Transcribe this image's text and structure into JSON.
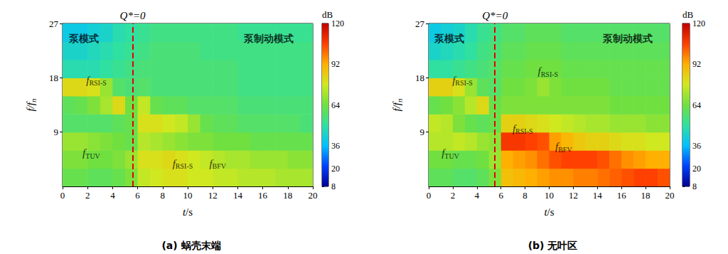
{
  "chart_data": [
    {
      "type": "heatmap",
      "title": "(a) 蜗壳末端",
      "xlabel": "t/s",
      "ylabel": "f/fn",
      "xlim": [
        0,
        20
      ],
      "xticks": [
        0,
        2,
        4,
        6,
        8,
        10,
        12,
        14,
        16,
        18,
        20
      ],
      "ylim": [
        0,
        27
      ],
      "yticks": [
        9,
        18,
        27
      ],
      "grid": false,
      "t_edges": [
        0,
        1,
        2,
        3,
        4,
        5,
        6,
        7,
        8,
        9,
        10,
        11,
        12,
        13,
        14,
        15,
        16,
        17,
        18,
        19,
        20
      ],
      "f_edges": [
        0,
        3,
        6,
        9,
        12,
        15,
        18,
        21,
        24,
        27
      ],
      "cells": [
        [
          62,
          62,
          60,
          60,
          62,
          66,
          76,
          78,
          80,
          80,
          78,
          78,
          76,
          76,
          74,
          74,
          74,
          72,
          72,
          72
        ],
        [
          66,
          66,
          64,
          64,
          66,
          70,
          80,
          80,
          82,
          80,
          78,
          76,
          74,
          72,
          72,
          70,
          70,
          70,
          68,
          68
        ],
        [
          70,
          70,
          68,
          66,
          64,
          62,
          74,
          72,
          70,
          68,
          66,
          66,
          64,
          64,
          64,
          62,
          62,
          62,
          62,
          62
        ],
        [
          58,
          58,
          58,
          58,
          60,
          62,
          80,
          80,
          78,
          76,
          70,
          62,
          60,
          60,
          58,
          58,
          58,
          58,
          58,
          56
        ],
        [
          60,
          62,
          66,
          72,
          82,
          64,
          76,
          62,
          60,
          60,
          58,
          58,
          58,
          58,
          56,
          56,
          56,
          56,
          56,
          56
        ],
        [
          82,
          82,
          80,
          70,
          58,
          56,
          58,
          56,
          56,
          56,
          56,
          56,
          56,
          56,
          54,
          54,
          54,
          54,
          54,
          54
        ],
        [
          48,
          48,
          48,
          50,
          52,
          54,
          56,
          56,
          56,
          56,
          56,
          56,
          56,
          56,
          54,
          54,
          54,
          54,
          54,
          54
        ],
        [
          44,
          44,
          46,
          48,
          50,
          52,
          54,
          56,
          56,
          56,
          56,
          54,
          54,
          54,
          54,
          54,
          54,
          54,
          54,
          54
        ],
        [
          40,
          40,
          42,
          44,
          48,
          50,
          52,
          54,
          54,
          54,
          54,
          54,
          54,
          54,
          52,
          52,
          52,
          52,
          52,
          52
        ]
      ],
      "colorbar": {
        "label": "dB",
        "lim": [
          8,
          120
        ],
        "ticks": [
          8,
          20,
          36,
          64,
          92,
          120
        ]
      },
      "vline": {
        "t": 5.6,
        "label": "Q*=0"
      },
      "annotations": [
        {
          "text": "泵模式",
          "x": 1.7,
          "y": 24.5
        },
        {
          "text": "泵制动模式",
          "x": 16.5,
          "y": 24.5
        },
        {
          "text": "fRSI-S",
          "x": 2.7,
          "y": 17.6
        },
        {
          "text": "fTUV",
          "x": 2.3,
          "y": 5.5
        },
        {
          "text": "fRSI-S",
          "x": 9.6,
          "y": 3.8
        },
        {
          "text": "fBFV",
          "x": 12.4,
          "y": 3.8
        }
      ]
    },
    {
      "type": "heatmap",
      "title": "(b) 无叶区",
      "xlabel": "t/s",
      "ylabel": "f/fn",
      "xlim": [
        0,
        20
      ],
      "xticks": [
        0,
        2,
        4,
        6,
        8,
        10,
        12,
        14,
        16,
        18,
        20
      ],
      "ylim": [
        0,
        27
      ],
      "yticks": [
        9,
        18,
        27
      ],
      "grid": false,
      "t_edges": [
        0,
        1,
        2,
        3,
        4,
        5,
        6,
        7,
        8,
        9,
        10,
        11,
        12,
        13,
        14,
        15,
        16,
        17,
        18,
        19,
        20
      ],
      "f_edges": [
        0,
        3,
        6,
        9,
        12,
        15,
        18,
        21,
        24,
        27
      ],
      "cells": [
        [
          60,
          60,
          58,
          58,
          60,
          66,
          88,
          90,
          92,
          94,
          96,
          96,
          98,
          98,
          100,
          102,
          104,
          106,
          106,
          104
        ],
        [
          64,
          64,
          62,
          62,
          64,
          70,
          92,
          94,
          96,
          100,
          104,
          106,
          106,
          106,
          104,
          100,
          96,
          94,
          92,
          92
        ],
        [
          74,
          74,
          76,
          74,
          70,
          68,
          108,
          108,
          106,
          104,
          94,
          90,
          86,
          84,
          84,
          82,
          80,
          80,
          78,
          78
        ],
        [
          76,
          74,
          66,
          62,
          60,
          62,
          84,
          84,
          82,
          80,
          78,
          76,
          74,
          72,
          72,
          70,
          70,
          70,
          68,
          68
        ],
        [
          62,
          64,
          68,
          74,
          82,
          62,
          66,
          66,
          66,
          66,
          66,
          66,
          66,
          66,
          66,
          64,
          64,
          64,
          64,
          64
        ],
        [
          84,
          84,
          80,
          70,
          60,
          58,
          64,
          64,
          66,
          70,
          66,
          64,
          64,
          64,
          64,
          62,
          62,
          62,
          62,
          62
        ],
        [
          50,
          50,
          52,
          54,
          56,
          58,
          62,
          62,
          64,
          64,
          64,
          62,
          62,
          62,
          62,
          62,
          62,
          62,
          62,
          62
        ],
        [
          44,
          46,
          48,
          50,
          54,
          56,
          60,
          60,
          62,
          62,
          62,
          60,
          60,
          60,
          60,
          60,
          60,
          60,
          60,
          60
        ],
        [
          40,
          42,
          44,
          48,
          52,
          54,
          58,
          58,
          60,
          60,
          60,
          58,
          58,
          58,
          58,
          58,
          58,
          58,
          58,
          58
        ]
      ],
      "colorbar": {
        "label": "dB",
        "lim": [
          8,
          120
        ],
        "ticks": [
          8,
          20,
          36,
          64,
          92,
          120
        ]
      },
      "vline": {
        "t": 5.5,
        "label": "Q*=0"
      },
      "annotations": [
        {
          "text": "泵模式",
          "x": 1.7,
          "y": 24.5
        },
        {
          "text": "泵制动模式",
          "x": 16.5,
          "y": 24.5
        },
        {
          "text": "fRSI-S",
          "x": 2.8,
          "y": 17.6
        },
        {
          "text": "fTUV",
          "x": 1.8,
          "y": 5.5
        },
        {
          "text": "fRSI-S",
          "x": 9.9,
          "y": 19.1
        },
        {
          "text": "fRSI-S",
          "x": 7.8,
          "y": 9.6
        },
        {
          "text": "fBFV",
          "x": 11.2,
          "y": 6.6
        }
      ]
    }
  ]
}
